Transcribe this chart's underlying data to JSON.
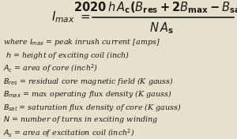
{
  "background_color": "#e8e0cc",
  "formula_fontsize": 11,
  "def_fontsize": 6.8,
  "text_color": "#1a1a1a",
  "definitions": [
    "where $\\mathit{I_{max}}$ = peak inrush current [amps]",
    " $\\mathit{h}$ = height of exciting coil (inch)",
    "$\\mathit{A_c}$ = area of core (inch$^2$)",
    "$\\mathit{B_{res}}$ = residual core magnetic field (K gauss)",
    "$\\mathit{B_{max}}$ = max operating flux density (K gauss)",
    "$\\mathit{B_{sat}}$ = saturation flux density of core (K gauss)",
    "$\\mathit{N}$ = number of turns in exciting winding",
    "$\\mathit{A_s}$ = area of excitation coil (inch$^2$)"
  ]
}
